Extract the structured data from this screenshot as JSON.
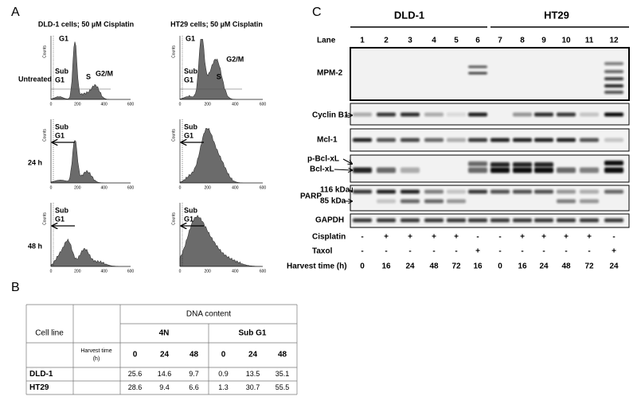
{
  "panel_a": {
    "label": "A",
    "columns": [
      {
        "title": "DLD-1 cells; 50 µM Cisplatin"
      },
      {
        "title": "HT29 cells; 50 µM Cisplatin"
      }
    ],
    "rows": [
      "Untreated",
      "24 h",
      "48 h"
    ],
    "peak_labels": {
      "g1": "G1",
      "s": "S",
      "g2m": "G2/M",
      "sub_g1": [
        "Sub",
        "G1"
      ]
    },
    "y_axis_label": "Counts",
    "x_ticks": [
      "0",
      "200",
      "400",
      "600"
    ]
  },
  "panel_b": {
    "label": "B",
    "table": {
      "group_header": "DNA content",
      "cell_line_header": "Cell line",
      "harvest_header": [
        "Harvest time",
        "(h)"
      ],
      "groups": [
        "4N",
        "Sub G1"
      ],
      "times": [
        0,
        24,
        48,
        0,
        24,
        48
      ],
      "rows": [
        [
          "DLD-1",
          25.6,
          14.6,
          9.7,
          0.9,
          13.5,
          35.1
        ],
        [
          "HT29",
          28.6,
          9.4,
          6.6,
          1.3,
          30.7,
          55.5
        ]
      ]
    }
  },
  "panel_c": {
    "label": "C",
    "groups": [
      "DLD-1",
      "HT29"
    ],
    "lane_header": "Lane",
    "lanes": [
      1,
      2,
      3,
      4,
      5,
      6,
      7,
      8,
      9,
      10,
      11,
      12
    ],
    "blots": {
      "mpm2": "MPM-2",
      "cyclin_b1": "Cyclin B1",
      "mcl1": "Mcl-1",
      "p_bcl_xl": "p-Bcl-xL",
      "bcl_xl": "Bcl-xL",
      "parp": "PARP",
      "parp_116": "116 kDa",
      "parp_85": "85 kDa",
      "gapdh": "GAPDH"
    },
    "treatments": [
      {
        "name": "Cisplatin",
        "values": [
          "-",
          "+",
          "+",
          "+",
          "+",
          "-",
          "-",
          "+",
          "+",
          "+",
          "+",
          "-"
        ]
      },
      {
        "name": "Taxol",
        "values": [
          "-",
          "-",
          "-",
          "-",
          "-",
          "+",
          "-",
          "-",
          "-",
          "-",
          "-",
          "+"
        ]
      },
      {
        "name": "Harvest time (h)",
        "values": [
          0,
          16,
          24,
          48,
          72,
          16,
          0,
          16,
          24,
          48,
          72,
          24
        ]
      }
    ]
  }
}
